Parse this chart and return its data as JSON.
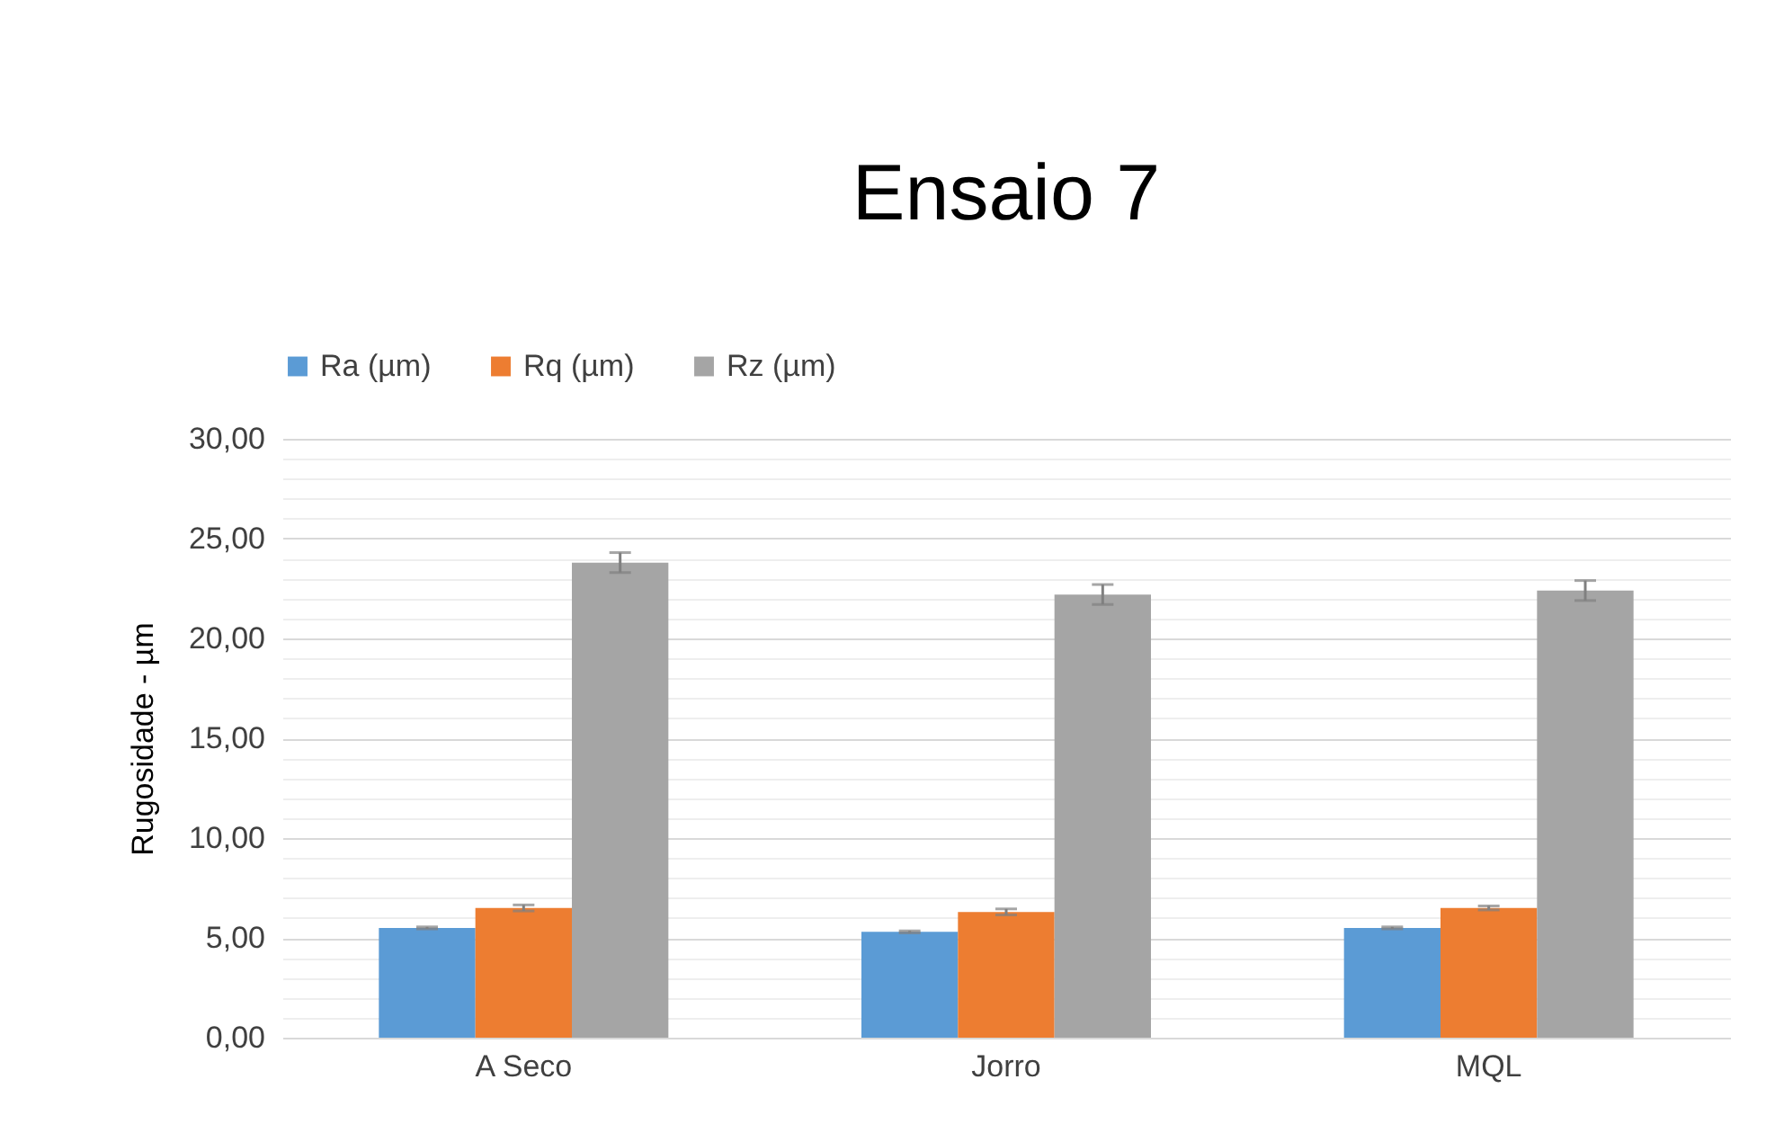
{
  "chart_data": {
    "type": "bar",
    "title": "Ensaio 7",
    "ylabel": "Rugosidade - µm",
    "categories": [
      "A Seco",
      "Jorro",
      "MQL"
    ],
    "series": [
      {
        "name": "Ra (µm)",
        "color": "#5b9bd5",
        "values": [
          5.5,
          5.3,
          5.5
        ],
        "errors": [
          0.05,
          0.05,
          0.05
        ]
      },
      {
        "name": "Rq (µm)",
        "color": "#ed7d31",
        "values": [
          6.5,
          6.3,
          6.5
        ],
        "errors": [
          0.15,
          0.15,
          0.1
        ]
      },
      {
        "name": "Rz (µm)",
        "color": "#a5a5a5",
        "values": [
          23.8,
          22.2,
          22.4
        ],
        "errors": [
          0.5,
          0.5,
          0.5
        ]
      }
    ],
    "ylim": [
      0,
      30
    ],
    "yticks": [
      {
        "value": 0,
        "label": "0,00"
      },
      {
        "value": 1,
        "label": null
      },
      {
        "value": 2,
        "label": null
      },
      {
        "value": 3,
        "label": null
      },
      {
        "value": 4,
        "label": null
      },
      {
        "value": 5,
        "label": "5,00"
      },
      {
        "value": 6,
        "label": null
      },
      {
        "value": 7,
        "label": null
      },
      {
        "value": 8,
        "label": null
      },
      {
        "value": 9,
        "label": null
      },
      {
        "value": 10,
        "label": "10,00"
      },
      {
        "value": 11,
        "label": null
      },
      {
        "value": 12,
        "label": null
      },
      {
        "value": 13,
        "label": null
      },
      {
        "value": 14,
        "label": null
      },
      {
        "value": 15,
        "label": "15,00"
      },
      {
        "value": 16,
        "label": null
      },
      {
        "value": 17,
        "label": null
      },
      {
        "value": 18,
        "label": null
      },
      {
        "value": 19,
        "label": null
      },
      {
        "value": 20,
        "label": "20,00"
      },
      {
        "value": 21,
        "label": null
      },
      {
        "value": 22,
        "label": null
      },
      {
        "value": 23,
        "label": null
      },
      {
        "value": 24,
        "label": null
      },
      {
        "value": 25,
        "label": "25,00"
      },
      {
        "value": 26,
        "label": null
      },
      {
        "value": 27,
        "label": null
      },
      {
        "value": 28,
        "label": null
      },
      {
        "value": 29,
        "label": null
      },
      {
        "value": 30,
        "label": "30,00"
      }
    ],
    "grid": "y",
    "legend": "top"
  }
}
